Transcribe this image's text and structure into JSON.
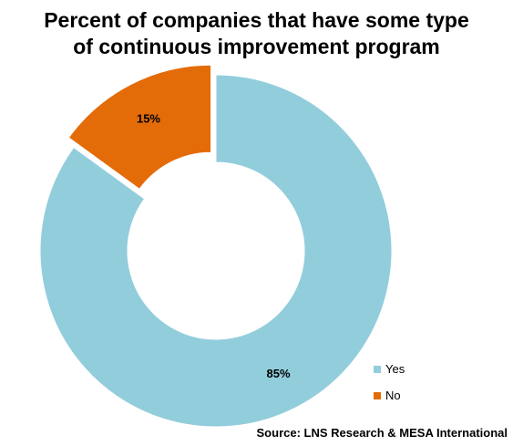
{
  "chart_data": {
    "type": "pie",
    "style": "donut",
    "title_lines": [
      "Percent of companies that have some type",
      "of continuous improvement program"
    ],
    "series": [
      {
        "name": "Yes",
        "value": 85,
        "label": "85%",
        "color": "#92CDDC",
        "exploded": false
      },
      {
        "name": "No",
        "value": 15,
        "label": "15%",
        "color": "#E36C09",
        "exploded": true
      }
    ],
    "legend_position": "bottom-right",
    "source": "Source: LNS Research & MESA International"
  }
}
